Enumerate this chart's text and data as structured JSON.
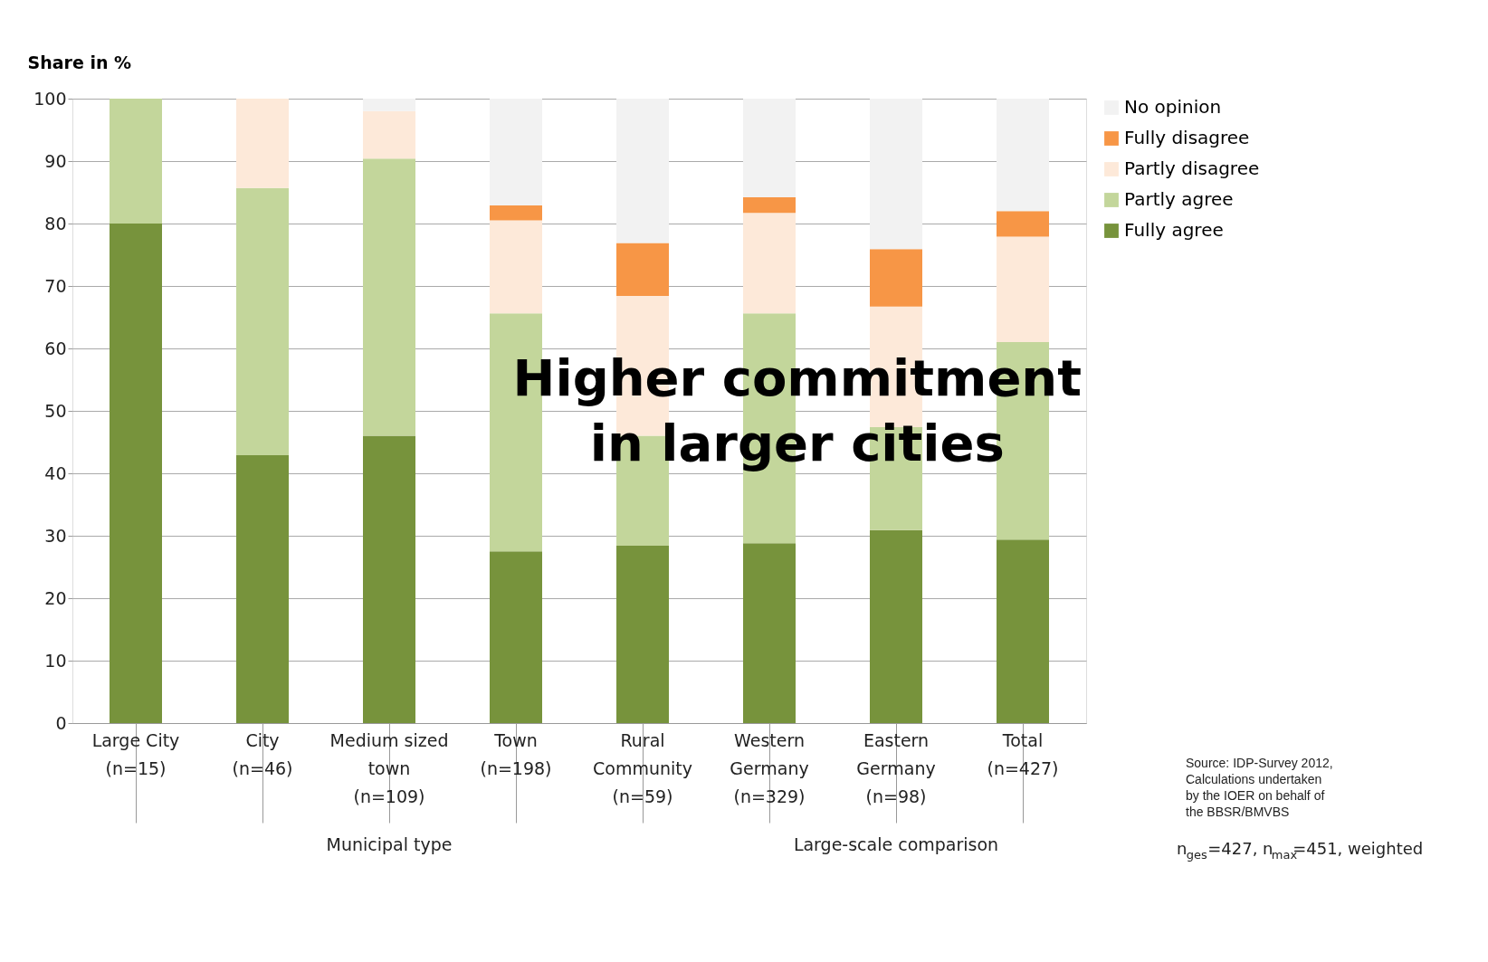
{
  "chart_data": {
    "type": "bar",
    "stacked": true,
    "ylabel": "Share in %",
    "categories": [
      "Large City (n=15)",
      "City (n=46)",
      "Medium sized town (n=109)",
      "Town (n=198)",
      "Rural Community (n=59)",
      "Western Germany (n=329)",
      "Eastern Germany (n=98)",
      "Total (n=427)"
    ],
    "series": [
      {
        "name": "Fully agree",
        "color": "#77933c",
        "values": [
          80,
          42.9,
          46.0,
          27.5,
          28.4,
          28.8,
          30.9,
          29.4
        ]
      },
      {
        "name": "Partly agree",
        "color": "#c3d69b",
        "values": [
          20,
          42.8,
          44.4,
          38.1,
          17.6,
          36.8,
          16.5,
          31.6
        ]
      },
      {
        "name": "Partly disagree",
        "color": "#fde9d9",
        "values": [
          0,
          14.3,
          7.6,
          14.9,
          22.4,
          16.1,
          19.3,
          16.9
        ]
      },
      {
        "name": "Fully disagree",
        "color": "#f79646",
        "values": [
          0,
          0,
          0,
          2.4,
          8.5,
          2.5,
          9.2,
          4.1
        ]
      },
      {
        "name": "No opinion",
        "color": "#f2f2f2",
        "values": [
          0,
          0,
          2.0,
          17.1,
          23.1,
          15.8,
          24.1,
          18.0
        ]
      }
    ],
    "ylim": [
      0,
      100
    ],
    "yticks": [
      0,
      10,
      20,
      30,
      40,
      50,
      60,
      70,
      80,
      90,
      100
    ],
    "grid": "y",
    "legend": "top right",
    "annotations": [
      "Higher commitment in larger cities",
      "Municipal type",
      "Large-scale comparison",
      "Source: IDP-Survey 2012, Calculations undertaken by the IOER on behalf of the BBSR/BMVBS",
      "n$_{ges}$=427, n$_{max}$=451, weighted"
    ]
  }
}
